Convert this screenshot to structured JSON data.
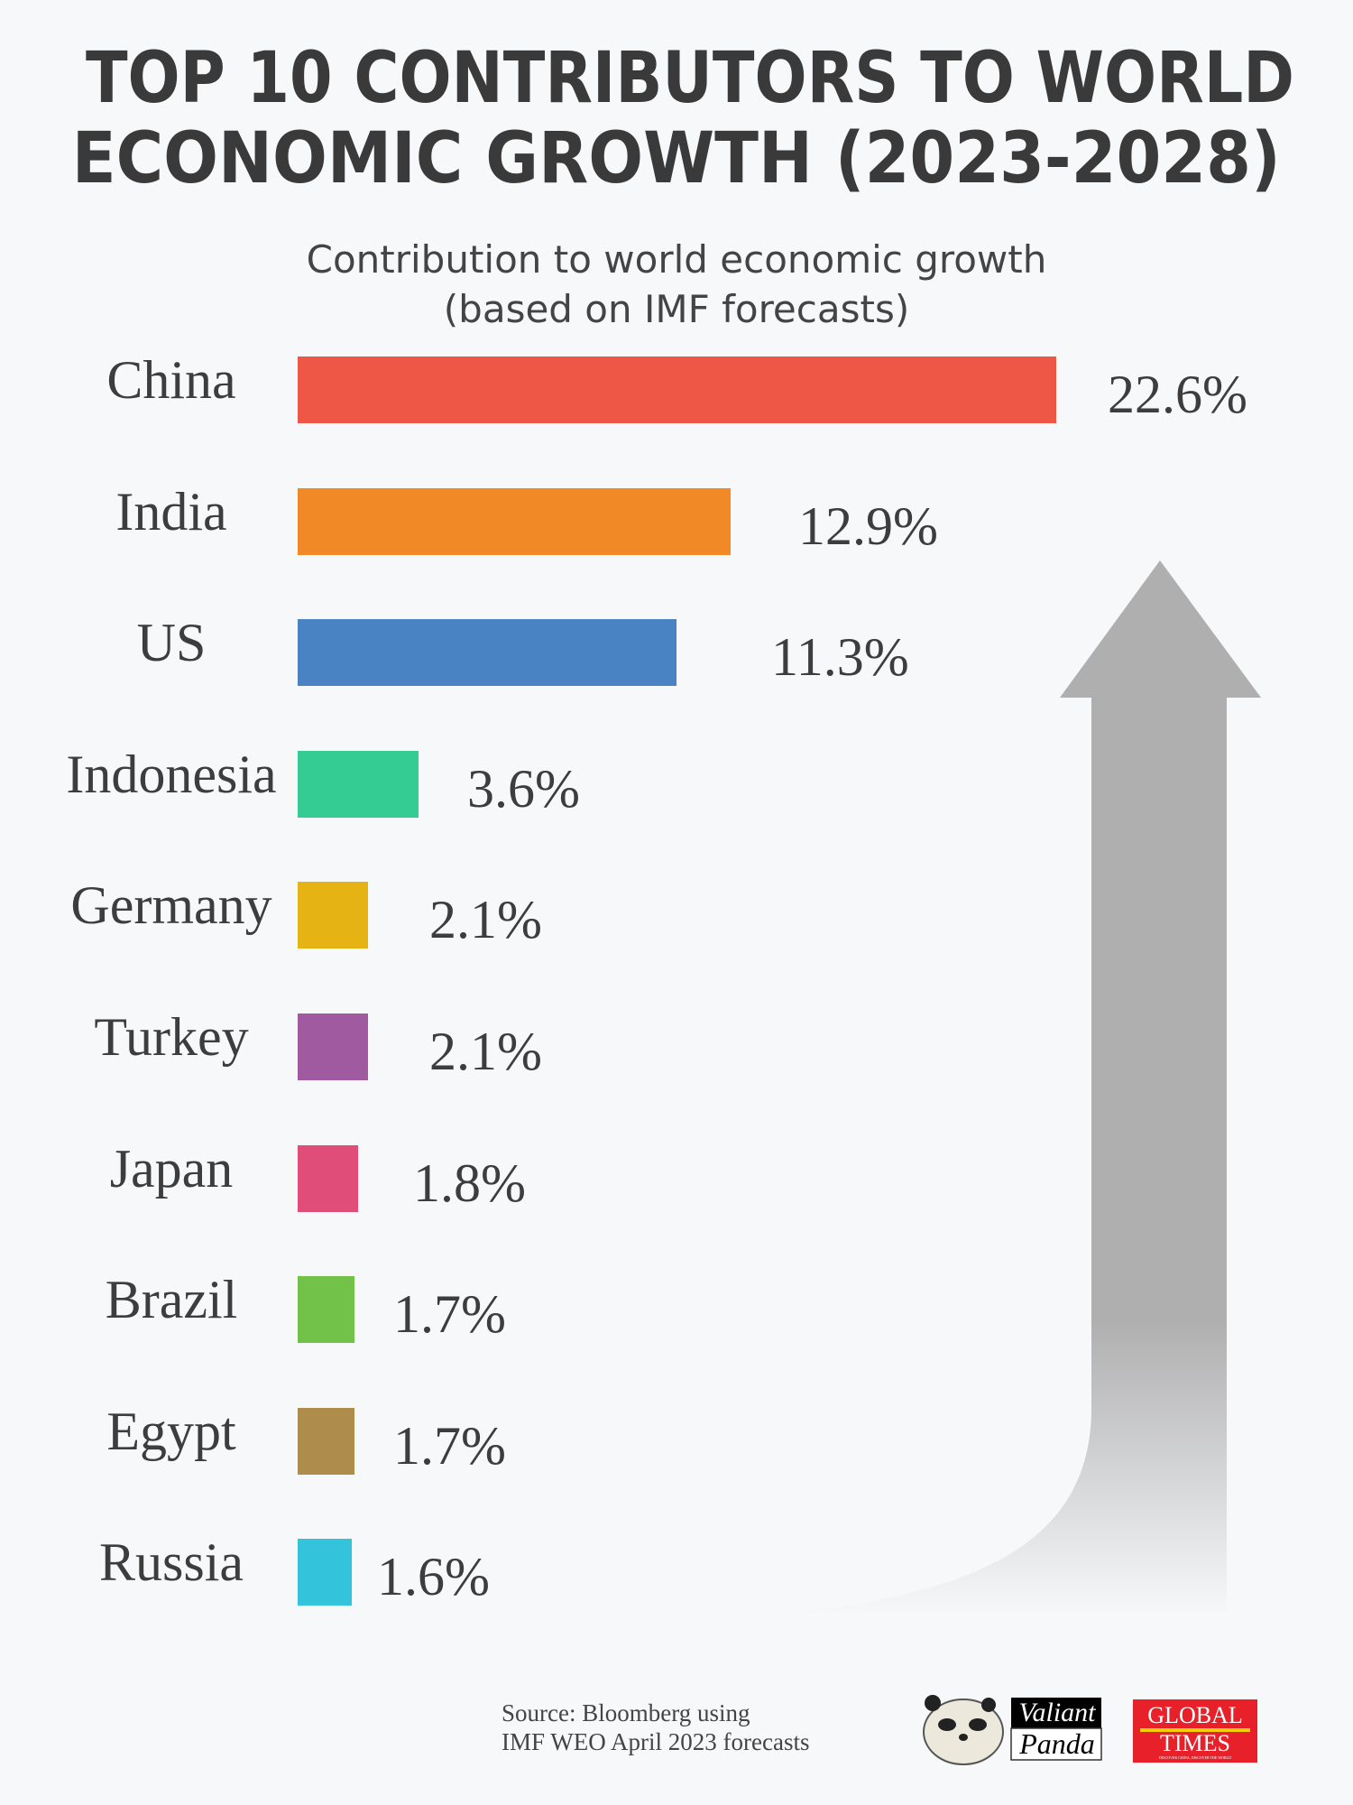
{
  "title_lines": [
    "TOP 10 CONTRIBUTORS TO WORLD",
    "ECONOMIC GROWTH (2023-2028)"
  ],
  "subtitle_lines": [
    "Contribution to world economic growth",
    "(based on IMF forecasts)"
  ],
  "chart_data": {
    "type": "bar",
    "orientation": "horizontal",
    "title": "TOP 10 CONTRIBUTORS TO WORLD ECONOMIC GROWTH (2023-2028)",
    "subtitle": "Contribution to world economic growth (based on IMF forecasts)",
    "categories": [
      "China",
      "India",
      "US",
      "Indonesia",
      "Germany",
      "Turkey",
      "Japan",
      "Brazil",
      "Egypt",
      "Russia"
    ],
    "values": [
      22.6,
      12.9,
      11.3,
      3.6,
      2.1,
      2.1,
      1.8,
      1.7,
      1.7,
      1.6
    ],
    "value_labels": [
      "22.6%",
      "12.9%",
      "11.3%",
      "3.6%",
      "2.1%",
      "2.1%",
      "1.8%",
      "1.7%",
      "1.7%",
      "1.6%"
    ],
    "colors": [
      "#ee5746",
      "#f18927",
      "#4a83c3",
      "#34cc93",
      "#e5b313",
      "#a05aa0",
      "#e04d78",
      "#72c24a",
      "#ae8c4c",
      "#33c3db"
    ],
    "grid": false,
    "axes_visible": false
  },
  "source_lines": [
    "Source: Bloomberg using",
    "IMF WEO April 2023 forecasts"
  ],
  "logos": {
    "valiant_panda": [
      "Valiant",
      "Panda"
    ],
    "global_times": [
      "GLOBAL",
      "TIMES",
      "DISCOVER CHINA, DISCOVER THE WORLD"
    ]
  },
  "colors": {
    "background": "#f7f8fa",
    "arrow": "#afafb0",
    "text": "#3d3d3d"
  }
}
